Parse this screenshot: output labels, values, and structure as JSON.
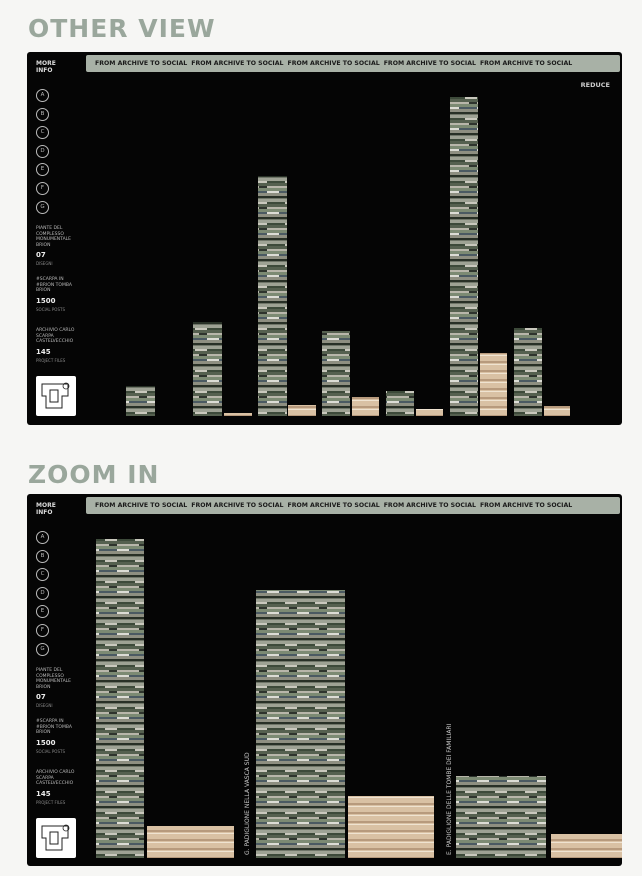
{
  "sections": [
    {
      "heading": "OTHER VIEW",
      "button": "REDUCE",
      "labels": []
    },
    {
      "heading": "ZOOM IN",
      "labels": [
        "G. PADIGLIONE NELLA VASCA SUD",
        "E. PADIGLIONE DELLE TOMBE DEI FAMILIARI"
      ]
    }
  ],
  "marquee": "FROM ARCHIVE TO SOCIAL",
  "sidebar": {
    "more_info": "MORE INFO",
    "letters": [
      "A",
      "B",
      "C",
      "D",
      "E",
      "F",
      "G"
    ],
    "stats": [
      {
        "caption": "PIANTE DEL COMPLESSO MONUMENTALE BRION",
        "number": "07",
        "unit": "DISEGNI"
      },
      {
        "caption": "#SCARPA IN #BRION TOMBA BRION",
        "number": "1500",
        "unit": "SOCIAL POSTS"
      },
      {
        "caption": "ARCHIVIO CARLO SCARPA CASTELVECCHIO",
        "number": "145",
        "unit": "PROJECT FILES"
      }
    ]
  }
}
